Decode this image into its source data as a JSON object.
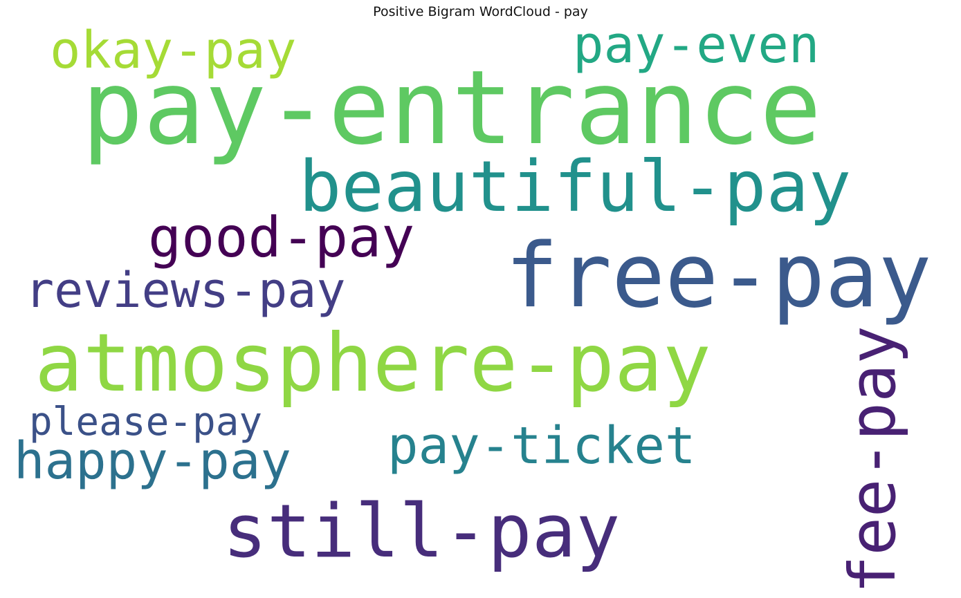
{
  "figure": {
    "title": "Positive Bigram WordCloud - pay"
  },
  "words": [
    {
      "text": "pay-entrance",
      "color": "#5ec962"
    },
    {
      "text": "beautiful-pay",
      "color": "#21918c"
    },
    {
      "text": "free-pay",
      "color": "#3b5a8c"
    },
    {
      "text": "atmosphere-pay",
      "color": "#8fd744"
    },
    {
      "text": "still-pay",
      "color": "#472d7b"
    },
    {
      "text": "okay-pay",
      "color": "#a5db36"
    },
    {
      "text": "pay-even",
      "color": "#22a884"
    },
    {
      "text": "good-pay",
      "color": "#440154"
    },
    {
      "text": "reviews-pay",
      "color": "#433e85"
    },
    {
      "text": "please-pay",
      "color": "#3b5188"
    },
    {
      "text": "happy-pay",
      "color": "#2c718e"
    },
    {
      "text": "pay-ticket",
      "color": "#26828e"
    },
    {
      "text": "fee-pay",
      "color": "#482173"
    }
  ]
}
